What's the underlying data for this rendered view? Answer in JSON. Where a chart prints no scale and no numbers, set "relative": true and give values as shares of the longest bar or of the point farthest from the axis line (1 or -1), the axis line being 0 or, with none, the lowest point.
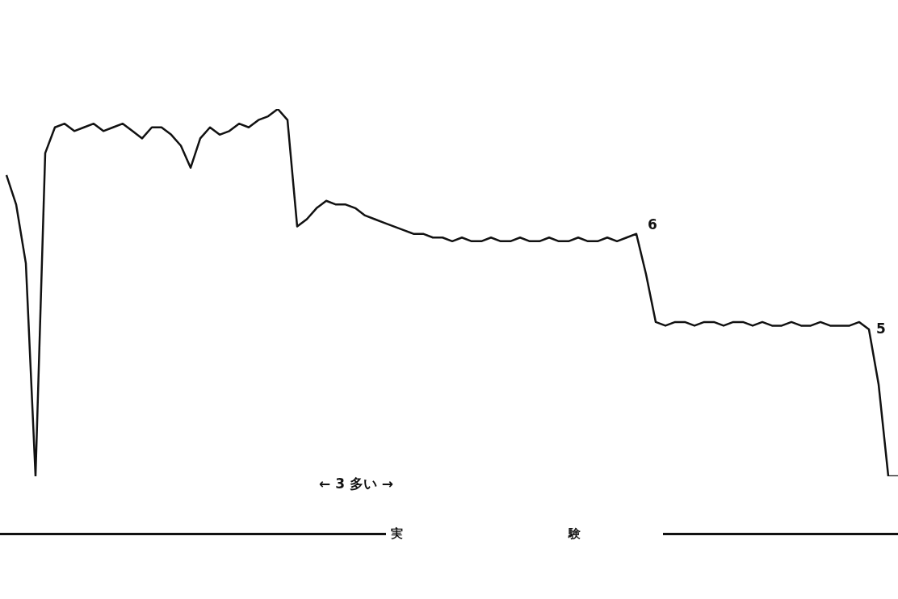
{
  "chart_data": {
    "type": "line",
    "relative": true,
    "color": "#111111",
    "marker": "none",
    "line_style": "solid",
    "categories": [
      null,
      null,
      null,
      null,
      null,
      null,
      null,
      null,
      null,
      null,
      null,
      null,
      null,
      null,
      null,
      null,
      null,
      null,
      null,
      null,
      null,
      null,
      null,
      null,
      null,
      null,
      null,
      null,
      null,
      null,
      null,
      null,
      null,
      null,
      null,
      null,
      null,
      null,
      null,
      null,
      null,
      null,
      null,
      null,
      null,
      null,
      null,
      null,
      null,
      null,
      null,
      null,
      null,
      null,
      null,
      null,
      null,
      null,
      null,
      null,
      null,
      null,
      null,
      null,
      null,
      null,
      null,
      null,
      null,
      null,
      null,
      null,
      null,
      null,
      null,
      null,
      null,
      null,
      null,
      null,
      null,
      null,
      null,
      null,
      null,
      null,
      null,
      null,
      null,
      null,
      null,
      null,
      null
    ],
    "values": [
      0.82,
      0.74,
      0.58,
      0,
      0.88,
      0.95,
      0.96,
      0.94,
      0.95,
      0.96,
      0.94,
      0.95,
      0.96,
      0.94,
      0.92,
      0.95,
      0.95,
      0.93,
      0.9,
      0.84,
      0.92,
      0.95,
      0.93,
      0.94,
      0.96,
      0.95,
      0.97,
      0.98,
      1,
      0.97,
      0.68,
      0.7,
      0.73,
      0.75,
      0.74,
      0.74,
      0.73,
      0.71,
      0.7,
      0.69,
      0.68,
      0.67,
      0.66,
      0.66,
      0.65,
      0.65,
      0.64,
      0.65,
      0.64,
      0.64,
      0.65,
      0.64,
      0.64,
      0.65,
      0.64,
      0.64,
      0.65,
      0.64,
      0.64,
      0.65,
      0.64,
      0.64,
      0.65,
      0.64,
      0.65,
      0.66,
      0.55,
      0.42,
      0.41,
      0.42,
      0.42,
      0.41,
      0.42,
      0.42,
      0.41,
      0.42,
      0.42,
      0.41,
      0.42,
      0.41,
      0.41,
      0.42,
      0.41,
      0.41,
      0.42,
      0.41,
      0.41,
      0.41,
      0.42,
      0.4,
      0.25,
      0,
      0
    ],
    "annotations": [
      "← 3 多い →",
      "実 験",
      "6",
      "5"
    ],
    "legend": false
  }
}
